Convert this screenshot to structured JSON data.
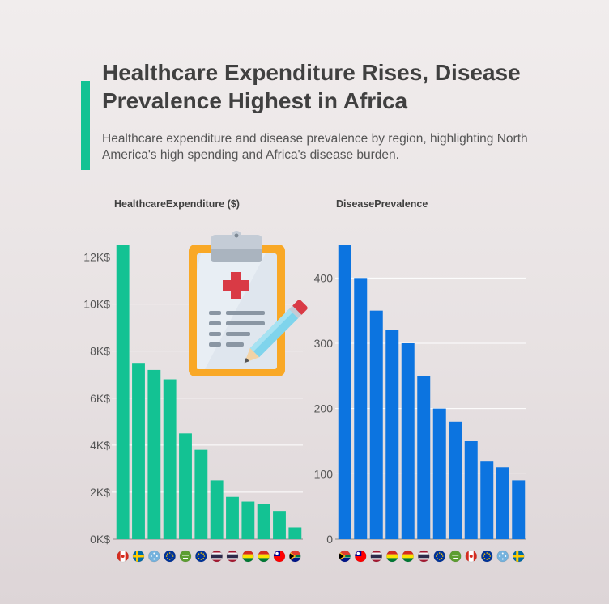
{
  "header": {
    "title": "Healthcare Expenditure Rises, Disease Prevalence Highest in Africa",
    "subtitle": "Healthcare expenditure and disease prevalence by region, highlighting North America's high spending and Africa's disease burden."
  },
  "colors": {
    "accent": "#13c293",
    "expenditure_bar": "#13c293",
    "prevalence_bar": "#0c74e0"
  },
  "chart_data": [
    {
      "type": "bar",
      "title": "HealthcareExpenditure ($)",
      "ylim": [
        0,
        12500
      ],
      "yticks": [
        0,
        2000,
        4000,
        6000,
        8000,
        10000,
        12000
      ],
      "ytick_labels": [
        "0K$",
        "2K$",
        "4K$",
        "6K$",
        "8K$",
        "10K$",
        "12K$"
      ],
      "grid": true,
      "category_icons": [
        "flag-canada-icon",
        "flag-sweden-icon",
        "flag-micronesia-icon",
        "flag-eu-icon",
        "flag-saudi-arabia-icon",
        "flag-eu-icon",
        "flag-thailand-icon",
        "flag-thailand-icon",
        "flag-bolivia-icon",
        "flag-bolivia-icon",
        "flag-taiwan-icon",
        "flag-south-africa-icon"
      ],
      "values": [
        12500,
        7500,
        7200,
        6800,
        4500,
        3800,
        2500,
        1800,
        1600,
        1500,
        1200,
        500
      ]
    },
    {
      "type": "bar",
      "title": "DiseasePrevalence",
      "ylim": [
        0,
        450
      ],
      "yticks": [
        0,
        100,
        200,
        300,
        400
      ],
      "ytick_labels": [
        "0",
        "100",
        "200",
        "300",
        "400"
      ],
      "grid": true,
      "category_icons": [
        "flag-south-africa-icon",
        "flag-taiwan-icon",
        "flag-thailand-icon",
        "flag-bolivia-icon",
        "flag-bolivia-icon",
        "flag-thailand-icon",
        "flag-eu-icon",
        "flag-saudi-arabia-icon",
        "flag-canada-icon",
        "flag-eu-icon",
        "flag-micronesia-icon",
        "flag-sweden-icon"
      ],
      "values": [
        450,
        400,
        350,
        320,
        300,
        250,
        200,
        180,
        150,
        120,
        110,
        90
      ]
    }
  ],
  "illustration": "clipboard-medical-icon"
}
